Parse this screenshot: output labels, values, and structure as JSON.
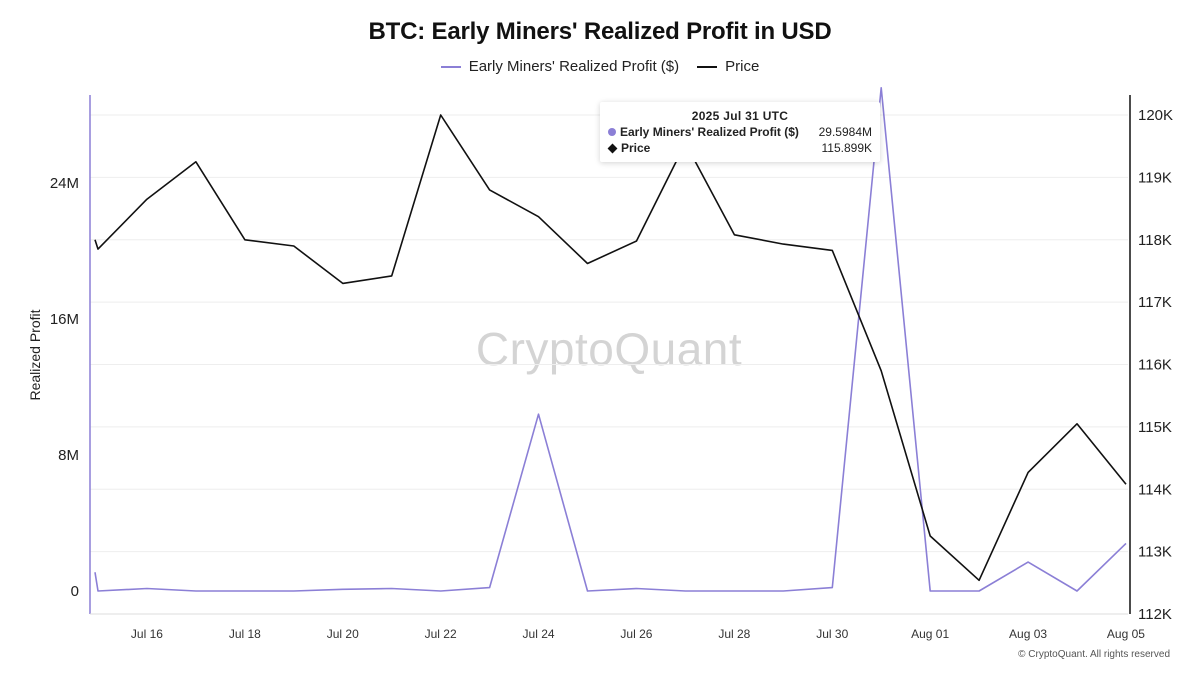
{
  "title": "BTC: Early Miners' Realized Profit in USD",
  "watermark": "CryptoQuant",
  "footer": "© CryptoQuant. All rights reserved",
  "colors": {
    "profit": "#8b7fd6",
    "price": "#111111",
    "grid": "#eeeeee"
  },
  "tooltip": {
    "date": "2025 Jul 31 UTC",
    "rows": [
      {
        "name": "Early Miners' Realized Profit ($)",
        "value": "29.5984M",
        "marker": "dot"
      },
      {
        "name": "Price",
        "value": "115.899K",
        "marker": "diamond"
      }
    ]
  },
  "chart_data": {
    "type": "line",
    "title": "BTC: Early Miners' Realized Profit in USD",
    "ylabel": "Realized Profit",
    "y2label": "",
    "legend_position": "top-center",
    "grid": true,
    "x": [
      "Jul 15",
      "Jul 16",
      "Jul 17",
      "Jul 18",
      "Jul 19",
      "Jul 20",
      "Jul 21",
      "Jul 22",
      "Jul 23",
      "Jul 24",
      "Jul 25",
      "Jul 26",
      "Jul 27",
      "Jul 28",
      "Jul 29",
      "Jul 30",
      "Jul 31",
      "Aug 01",
      "Aug 02",
      "Aug 03",
      "Aug 04",
      "Aug 05"
    ],
    "x_ticks": [
      "Jul 16",
      "Jul 18",
      "Jul 20",
      "Jul 22",
      "Jul 24",
      "Jul 26",
      "Jul 28",
      "Jul 30",
      "Aug 01",
      "Aug 03",
      "Aug 05"
    ],
    "y_left": {
      "range": [
        0,
        28000000
      ],
      "ticks": [
        0,
        8000000,
        16000000,
        24000000
      ],
      "tick_labels": [
        "0",
        "8M",
        "16M",
        "24M"
      ]
    },
    "y_right": {
      "range": [
        112000,
        120200
      ],
      "ticks": [
        112000,
        113000,
        114000,
        115000,
        116000,
        117000,
        118000,
        119000,
        120000
      ],
      "tick_labels": [
        "112K",
        "113K",
        "114K",
        "115K",
        "116K",
        "117K",
        "118K",
        "119K",
        "120K"
      ]
    },
    "series": [
      {
        "name": "Early Miners' Realized Profit ($)",
        "axis": "left",
        "start": 1100000,
        "values": [
          0,
          150000,
          0,
          0,
          0,
          100000,
          150000,
          0,
          200000,
          10400000,
          0,
          150000,
          0,
          0,
          0,
          200000,
          29598400,
          0,
          0,
          1700000,
          0,
          2800000
        ]
      },
      {
        "name": "Price",
        "axis": "right",
        "start": 118000,
        "values": [
          117850,
          118650,
          119250,
          118000,
          117900,
          117300,
          117420,
          120000,
          118800,
          118370,
          117620,
          117980,
          119550,
          118080,
          117930,
          117830,
          115899,
          113250,
          112540,
          114270,
          115050,
          114080
        ]
      }
    ]
  }
}
